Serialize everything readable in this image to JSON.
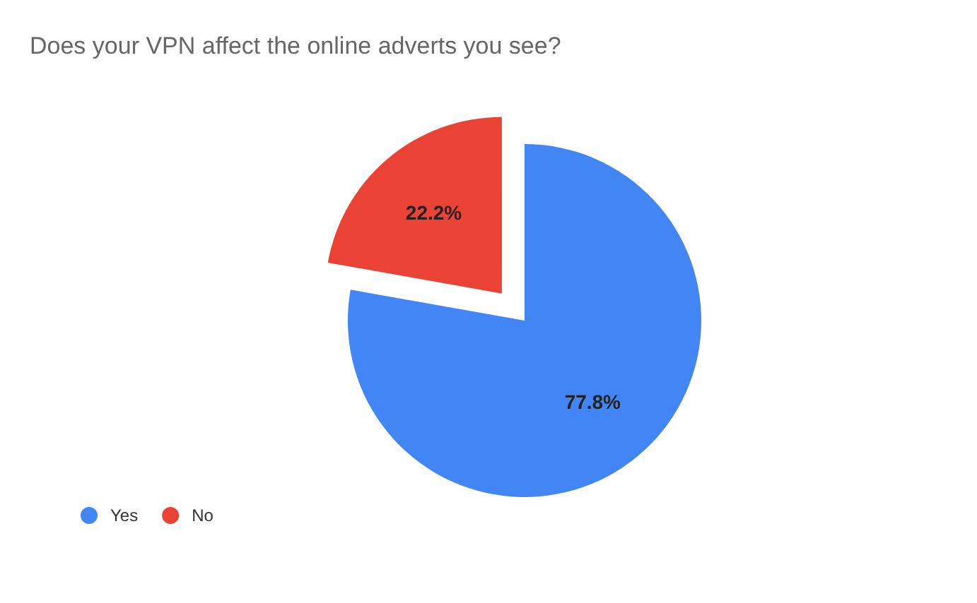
{
  "chart_data": {
    "type": "pie",
    "title": "Does your VPN affect the online adverts you see?",
    "categories": [
      "Yes",
      "No"
    ],
    "values": [
      77.8,
      22.2
    ],
    "colors": [
      "#4285f4",
      "#ea4335"
    ],
    "value_labels": [
      "77.8%",
      "22.2%"
    ],
    "legend": "bottom left"
  }
}
